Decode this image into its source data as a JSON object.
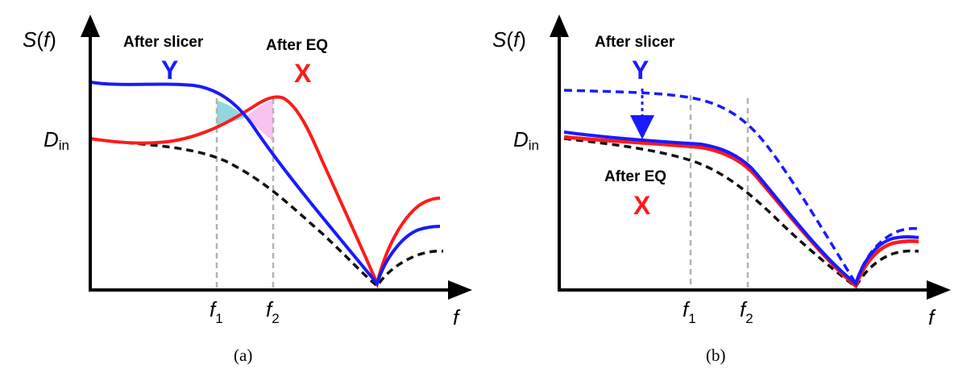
{
  "panels": [
    {
      "caption": "(a)",
      "y_axis_symbol": "S",
      "y_axis_arg": "f",
      "x_axis_symbol": "f",
      "d_in_symbol": "D",
      "d_in_sub": "in",
      "f1_symbol": "f",
      "f1_sub": "1",
      "f2_symbol": "f",
      "f2_sub": "2",
      "label_slicer": "After slicer",
      "label_y": "Y",
      "label_eq": "After EQ",
      "label_x": "X"
    },
    {
      "caption": "(b)",
      "y_axis_symbol": "S",
      "y_axis_arg": "f",
      "x_axis_symbol": "f",
      "d_in_symbol": "D",
      "d_in_sub": "in",
      "f1_symbol": "f",
      "f1_sub": "1",
      "f2_symbol": "f",
      "f2_sub": "2",
      "label_slicer": "After slicer",
      "label_y": "Y",
      "label_eq": "After EQ",
      "label_x": "X"
    }
  ],
  "colors": {
    "slicer_curve": "#1a1aff",
    "eq_curve": "#ff1a1a",
    "input_curve": "#111111",
    "guide": "#b3b3b3",
    "fill_cyan": "#7fd0d8",
    "fill_pink": "#f7b8ec"
  }
}
